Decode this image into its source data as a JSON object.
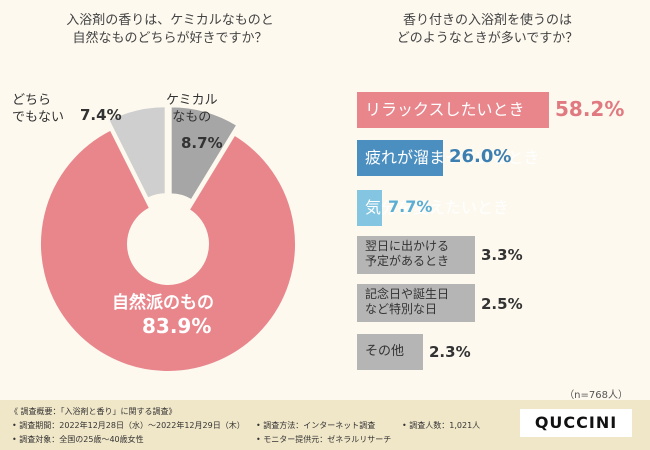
{
  "left_question": [
    "入浴剤の香りは、ケミカルなものと",
    "自然なものどちらが好きですか？"
  ],
  "right_question": [
    "香り付きの入浴剤を使うのは",
    "どのようなときが多いですか？"
  ],
  "chart_data": [
    {
      "type": "pie",
      "title": "入浴剤の香りは、ケミカルなものと自然なものどちらが好きですか？",
      "slices": [
        {
          "label": "ケミカルなもの",
          "value": 8.7,
          "value_text": "8.7%",
          "color": "#a6a6a6"
        },
        {
          "label": "自然派のもの",
          "value": 83.9,
          "value_text": "83.9%",
          "color": "#e8868c"
        },
        {
          "label": "どちらでもない",
          "value": 7.4,
          "value_text": "7.4%",
          "color": "#cfcfcf"
        }
      ],
      "label_lines": {
        "chemical": [
          "ケミカル",
          "なもの"
        ],
        "natural": [
          "自然派のもの"
        ],
        "neither": [
          "どちら",
          "でもない"
        ]
      }
    },
    {
      "type": "bar",
      "orientation": "horizontal",
      "title": "香り付きの入浴剤を使うのはどのようなときが多いですか？",
      "categories": [
        "リラックスしたいとき",
        "疲れが溜まっているとき",
        "気分を変えたいとき",
        "翌日に出かける予定があるとき",
        "記念日や誕生日など特別な日",
        "その他"
      ],
      "values": [
        58.2,
        26.0,
        7.7,
        3.3,
        2.5,
        2.3
      ],
      "value_labels": [
        "58.2%",
        "26.0%",
        "7.7%",
        "3.3%",
        "2.5%",
        "2.3%"
      ],
      "colors": [
        "#e8868c",
        "#4b8fc0",
        "#84c6e2",
        "#b5b5b5",
        "#b5b5b5",
        "#b5b5b5"
      ],
      "label_lines": {
        "gray1": [
          "翌日に出かける",
          "予定があるとき"
        ],
        "gray2": [
          "記念日や誕生日",
          "など特別な日"
        ],
        "gray3": [
          "その他"
        ]
      },
      "xlim": [
        0,
        60
      ]
    }
  ],
  "sample_note": "（n=768人）",
  "footer": {
    "heading": "《 調査概要：「入浴剤と香り」に関する調査》",
    "period": "• 調査期間：2022年12月28日（水）〜2022年12月29日（木）",
    "target": "• 調査対象：全国の25歳〜40歳女性",
    "method": "• 調査方法：インターネット調査",
    "provider": "• モニター提供元：ゼネラルリサーチ",
    "count": "• 調査人数：1,021人",
    "logo": "QUCCINI"
  }
}
